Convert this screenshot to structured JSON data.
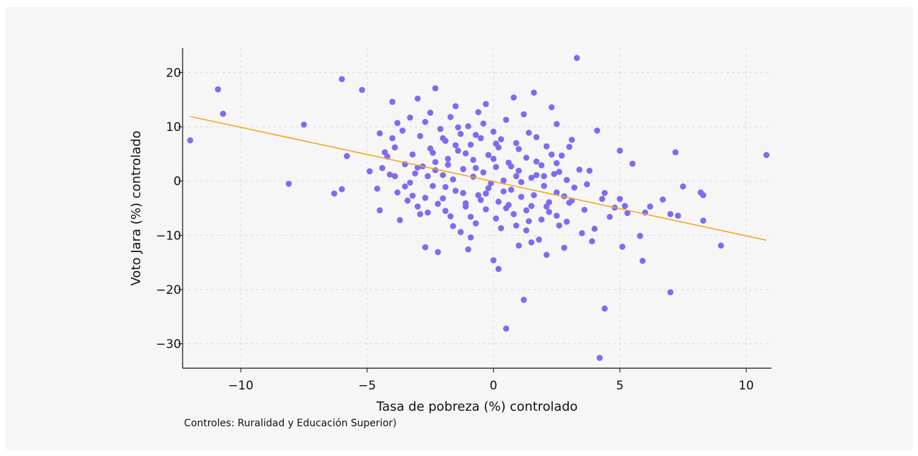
{
  "caption": "Controles: Ruralidad y Educación Superior)",
  "colors": {
    "points": "#7b6cf0",
    "fit_line": "#f5a623",
    "axis": "#111111",
    "grid": "#dcdcdc",
    "background": "#f6f6f6"
  },
  "chart_data": {
    "type": "scatter",
    "xlabel": "Tasa de pobreza (%) controlado",
    "ylabel": "Voto Jara (%) controlado",
    "xlim": [
      -12.3,
      11.0
    ],
    "ylim": [
      -34.5,
      24.5
    ],
    "xticks": [
      -10,
      -5,
      0,
      5,
      10
    ],
    "yticks": [
      -30,
      -20,
      -10,
      0,
      10,
      20
    ],
    "grid": "dashed",
    "fit_line": {
      "x": [
        -12.0,
        10.8
      ],
      "y": [
        11.9,
        -10.9
      ]
    },
    "points": [
      [
        -12.0,
        7.5
      ],
      [
        -10.9,
        16.9
      ],
      [
        -10.7,
        12.4
      ],
      [
        -8.1,
        -0.5
      ],
      [
        -7.5,
        10.4
      ],
      [
        -6.3,
        -2.3
      ],
      [
        -6.0,
        -1.5
      ],
      [
        -6.0,
        18.8
      ],
      [
        -5.8,
        4.6
      ],
      [
        -5.2,
        16.8
      ],
      [
        -4.9,
        1.8
      ],
      [
        -4.6,
        -1.4
      ],
      [
        -4.5,
        8.8
      ],
      [
        -4.5,
        -5.4
      ],
      [
        -4.4,
        2.4
      ],
      [
        -4.3,
        5.3
      ],
      [
        -4.2,
        4.5
      ],
      [
        -4.1,
        1.2
      ],
      [
        -4.0,
        14.6
      ],
      [
        -4.0,
        7.9
      ],
      [
        -3.9,
        6.2
      ],
      [
        -3.9,
        0.9
      ],
      [
        -3.8,
        -2.1
      ],
      [
        -3.8,
        10.7
      ],
      [
        -3.7,
        -7.2
      ],
      [
        -3.6,
        9.3
      ],
      [
        -3.5,
        3.1
      ],
      [
        -3.4,
        -3.6
      ],
      [
        -3.3,
        11.7
      ],
      [
        -3.2,
        4.9
      ],
      [
        -3.1,
        1.4
      ],
      [
        -3.0,
        15.2
      ],
      [
        -3.0,
        -4.7
      ],
      [
        -2.9,
        8.3
      ],
      [
        -2.8,
        2.7
      ],
      [
        -2.7,
        -12.2
      ],
      [
        -2.7,
        10.9
      ],
      [
        -2.6,
        -5.8
      ],
      [
        -2.5,
        12.6
      ],
      [
        -2.5,
        6.0
      ],
      [
        -2.4,
        -0.9
      ],
      [
        -2.3,
        17.1
      ],
      [
        -2.3,
        3.5
      ],
      [
        -2.2,
        -13.1
      ],
      [
        -2.1,
        9.6
      ],
      [
        -2.0,
        1.1
      ],
      [
        -2.0,
        -3.2
      ],
      [
        -1.9,
        7.4
      ],
      [
        -1.8,
        4.1
      ],
      [
        -1.7,
        -6.5
      ],
      [
        -1.7,
        11.8
      ],
      [
        -1.6,
        0.3
      ],
      [
        -1.5,
        -1.8
      ],
      [
        -1.5,
        13.8
      ],
      [
        -1.4,
        5.6
      ],
      [
        -1.3,
        8.7
      ],
      [
        -1.3,
        -9.4
      ],
      [
        -1.2,
        2.2
      ],
      [
        -1.1,
        -4.1
      ],
      [
        -1.0,
        10.1
      ],
      [
        -1.0,
        -12.6
      ],
      [
        -0.9,
        6.7
      ],
      [
        -0.8,
        0.8
      ],
      [
        -0.8,
        3.9
      ],
      [
        -0.7,
        -7.8
      ],
      [
        -0.6,
        12.7
      ],
      [
        -0.6,
        -2.6
      ],
      [
        -0.5,
        7.9
      ],
      [
        -0.4,
        1.6
      ],
      [
        -0.3,
        -5.2
      ],
      [
        -0.3,
        14.2
      ],
      [
        -0.2,
        4.8
      ],
      [
        -0.1,
        -0.4
      ],
      [
        0.0,
        -14.6
      ],
      [
        0.0,
        9.1
      ],
      [
        0.1,
        2.6
      ],
      [
        0.2,
        -3.8
      ],
      [
        0.2,
        6.2
      ],
      [
        0.3,
        -8.7
      ],
      [
        0.4,
        0.1
      ],
      [
        0.5,
        11.3
      ],
      [
        0.5,
        -27.2
      ],
      [
        0.6,
        3.4
      ],
      [
        0.7,
        -1.6
      ],
      [
        0.8,
        15.4
      ],
      [
        0.8,
        -6.1
      ],
      [
        0.9,
        7.0
      ],
      [
        1.0,
        -11.9
      ],
      [
        1.0,
        1.9
      ],
      [
        1.1,
        -2.9
      ],
      [
        1.2,
        -21.9
      ],
      [
        1.2,
        12.3
      ],
      [
        1.3,
        4.3
      ],
      [
        1.4,
        -7.4
      ],
      [
        1.5,
        0.6
      ],
      [
        1.5,
        -4.6
      ],
      [
        1.6,
        16.3
      ],
      [
        1.7,
        8.1
      ],
      [
        1.8,
        -10.8
      ],
      [
        1.9,
        2.9
      ],
      [
        2.0,
        -0.9
      ],
      [
        2.1,
        -13.6
      ],
      [
        2.1,
        6.4
      ],
      [
        2.2,
        -5.7
      ],
      [
        2.3,
        13.6
      ],
      [
        2.4,
        1.3
      ],
      [
        2.5,
        -2.1
      ],
      [
        2.5,
        10.5
      ],
      [
        2.6,
        -8.2
      ],
      [
        2.7,
        4.7
      ],
      [
        2.8,
        -12.3
      ],
      [
        2.9,
        0.2
      ],
      [
        3.0,
        -4.0
      ],
      [
        3.1,
        7.6
      ],
      [
        3.2,
        -1.2
      ],
      [
        3.3,
        22.7
      ],
      [
        3.4,
        2.1
      ],
      [
        3.5,
        -9.6
      ],
      [
        3.6,
        -5.3
      ],
      [
        3.7,
        -0.6
      ],
      [
        3.8,
        1.9
      ],
      [
        3.9,
        -11.1
      ],
      [
        4.0,
        -8.8
      ],
      [
        4.1,
        9.3
      ],
      [
        4.2,
        -32.6
      ],
      [
        4.3,
        -3.3
      ],
      [
        4.4,
        -23.5
      ],
      [
        4.4,
        -2.2
      ],
      [
        4.6,
        -6.6
      ],
      [
        4.8,
        -4.9
      ],
      [
        5.0,
        5.6
      ],
      [
        5.0,
        -3.3
      ],
      [
        5.1,
        -12.1
      ],
      [
        5.2,
        -4.6
      ],
      [
        5.3,
        -5.9
      ],
      [
        5.5,
        3.2
      ],
      [
        5.8,
        -10.1
      ],
      [
        5.9,
        -14.7
      ],
      [
        6.0,
        -5.8
      ],
      [
        6.2,
        -4.7
      ],
      [
        6.7,
        -3.4
      ],
      [
        7.0,
        -20.5
      ],
      [
        7.0,
        -6.1
      ],
      [
        7.2,
        5.3
      ],
      [
        7.3,
        -6.4
      ],
      [
        7.5,
        -1.0
      ],
      [
        8.2,
        -2.1
      ],
      [
        8.3,
        -2.6
      ],
      [
        8.3,
        -7.3
      ],
      [
        9.0,
        -11.9
      ],
      [
        10.8,
        4.8
      ],
      [
        -3.5,
        -1.0
      ],
      [
        -3.2,
        -2.7
      ],
      [
        -2.9,
        -6.1
      ],
      [
        -2.6,
        0.9
      ],
      [
        -2.4,
        5.2
      ],
      [
        -2.2,
        -4.2
      ],
      [
        -2.0,
        7.9
      ],
      [
        -1.9,
        -1.1
      ],
      [
        -1.8,
        3.0
      ],
      [
        -1.6,
        -8.3
      ],
      [
        -1.4,
        9.9
      ],
      [
        -1.2,
        -2.2
      ],
      [
        -1.1,
        5.1
      ],
      [
        -0.9,
        -6.6
      ],
      [
        -0.7,
        2.4
      ],
      [
        -0.5,
        -3.5
      ],
      [
        -0.4,
        10.6
      ],
      [
        -0.2,
        -1.3
      ],
      [
        0.0,
        4.1
      ],
      [
        0.1,
        -6.9
      ],
      [
        0.3,
        7.7
      ],
      [
        0.4,
        -1.9
      ],
      [
        0.6,
        -4.4
      ],
      [
        0.7,
        2.7
      ],
      [
        0.9,
        -8.2
      ],
      [
        1.0,
        5.9
      ],
      [
        1.1,
        -0.2
      ],
      [
        1.3,
        -5.4
      ],
      [
        1.4,
        8.9
      ],
      [
        1.6,
        -2.6
      ],
      [
        1.7,
        3.6
      ],
      [
        1.9,
        -7.1
      ],
      [
        2.0,
        0.9
      ],
      [
        2.2,
        -3.9
      ],
      [
        2.3,
        4.9
      ],
      [
        2.5,
        -6.4
      ],
      [
        2.6,
        1.7
      ],
      [
        2.8,
        -2.8
      ],
      [
        3.0,
        6.3
      ],
      [
        3.1,
        -3.6
      ],
      [
        -3.0,
        2.5
      ],
      [
        -2.7,
        -3.1
      ],
      [
        -2.3,
        2.0
      ],
      [
        -1.9,
        -5.5
      ],
      [
        -1.5,
        6.6
      ],
      [
        -1.1,
        -4.7
      ],
      [
        -0.7,
        8.5
      ],
      [
        -0.3,
        -2.3
      ],
      [
        0.1,
        6.9
      ],
      [
        0.5,
        -5.0
      ],
      [
        0.9,
        0.9
      ],
      [
        1.3,
        -9.1
      ],
      [
        1.7,
        1.1
      ],
      [
        2.1,
        -4.7
      ],
      [
        2.5,
        3.3
      ],
      [
        2.9,
        -7.5
      ],
      [
        -3.3,
        -0.3
      ],
      [
        -0.9,
        -10.4
      ],
      [
        1.5,
        -11.3
      ],
      [
        0.2,
        -16.2
      ]
    ]
  }
}
